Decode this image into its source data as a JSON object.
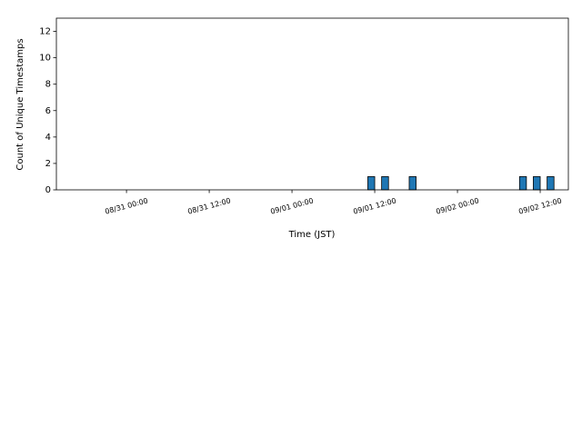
{
  "chart_data": {
    "type": "bar",
    "x": [
      "09/01 11:00",
      "09/01 13:00",
      "09/01 17:00",
      "09/02 09:00",
      "09/02 11:00",
      "09/02 13:00"
    ],
    "values": [
      1,
      1,
      1,
      1,
      1,
      1
    ],
    "color": "#1f77b4",
    "xlim": [
      "08/30 13:50",
      "09/02 16:05"
    ],
    "xticks": [
      "08/31 00:00",
      "08/31 12:00",
      "09/01 00:00",
      "09/01 12:00",
      "09/02 00:00",
      "09/02 12:00"
    ],
    "ylim": [
      0,
      13
    ],
    "yticks": [
      0,
      2,
      4,
      6,
      8,
      10,
      12
    ],
    "xlabel": "Time (JST)",
    "ylabel": "Count of Unique Timestamps"
  }
}
